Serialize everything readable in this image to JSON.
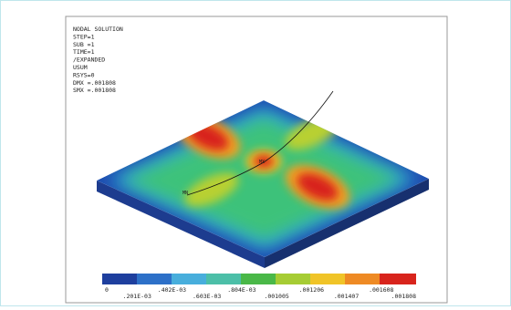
{
  "header": {
    "lines": [
      "NODAL SOLUTION",
      "STEP=1",
      "SUB =1",
      "TIME=1",
      "/EXPANDED",
      "USUM",
      "RSYS=0",
      "DMX =.001808",
      "SMX =.001808"
    ]
  },
  "plot": {
    "max_label": "MX",
    "min_label": "MN"
  },
  "legend": {
    "labels": [
      "0",
      ".201E-03",
      ".402E-03",
      ".603E-03",
      ".804E-03",
      ".001005",
      ".001206",
      ".001407",
      ".001608",
      ".001808"
    ]
  }
}
